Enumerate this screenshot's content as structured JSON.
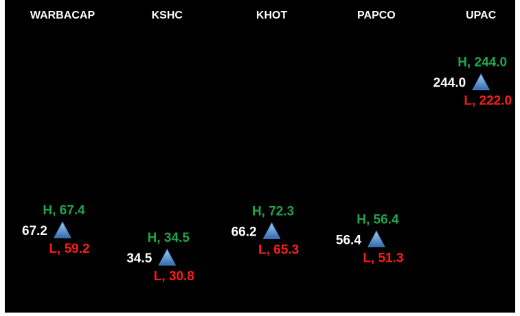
{
  "chart_data": {
    "type": "marker",
    "categories": [
      "WARBACAP",
      "KSHC",
      "KHOT",
      "PAPCO",
      "UPAC"
    ],
    "values": [
      67.2,
      34.5,
      66.2,
      56.4,
      244.0
    ],
    "value_labels": [
      "67.2",
      "34.5",
      "66.2",
      "56.4",
      "244.0"
    ],
    "high": [
      67.4,
      34.5,
      72.3,
      56.4,
      244.0
    ],
    "high_labels": [
      "H, 67.4",
      "H, 34.5",
      "H, 72.3",
      "H, 56.4",
      "H, 244.0"
    ],
    "low": [
      59.2,
      30.8,
      65.3,
      51.3,
      222.0
    ],
    "low_labels": [
      "L, 59.2",
      "L, 30.8",
      "L, 65.3",
      "L, 51.3",
      "L, 222.0"
    ],
    "ylim": [
      0,
      270
    ],
    "color": "#4a86c8",
    "high_color": "#1fa64a",
    "low_color": "#ff1a1a",
    "value_color": "#ffffff"
  }
}
